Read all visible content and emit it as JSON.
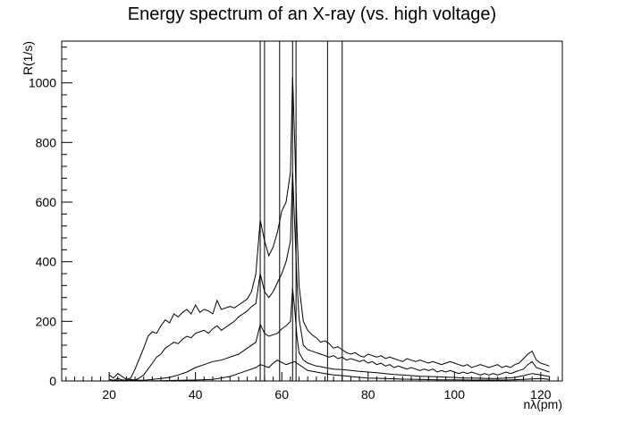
{
  "chart_data": {
    "type": "line",
    "title": "Energy spectrum of an X-ray (vs. high voltage)",
    "xlabel": "nλ(pm)",
    "ylabel": "R(1/s)",
    "xlim": [
      9,
      125
    ],
    "ylim": [
      0,
      1140
    ],
    "xticks": [
      20,
      40,
      60,
      80,
      100,
      120
    ],
    "yticks": [
      0,
      200,
      400,
      600,
      800,
      1000
    ],
    "grid": false,
    "legend": "none",
    "vertical_lines": [
      55,
      56,
      59.5,
      62.5,
      63.3,
      70.6,
      74
    ],
    "series": [
      {
        "x": [
          20,
          21,
          22,
          23,
          24,
          25,
          26,
          27,
          28,
          29,
          30,
          31,
          32,
          33,
          34,
          35,
          36,
          37,
          38,
          39,
          40,
          41,
          42,
          43,
          44,
          45,
          46,
          47,
          48,
          49,
          50,
          51,
          52,
          53,
          54,
          55,
          56,
          57,
          58,
          59,
          60,
          61,
          62,
          62.5,
          63,
          63.5,
          64,
          65,
          66,
          67,
          68,
          69,
          70,
          71,
          72,
          73,
          74,
          75,
          76,
          77,
          78,
          79,
          80,
          81,
          82,
          83,
          84,
          85,
          86,
          87,
          88,
          89,
          90,
          91,
          92,
          93,
          94,
          95,
          96,
          97,
          98,
          99,
          100,
          101,
          102,
          103,
          104,
          105,
          106,
          107,
          108,
          109,
          110,
          111,
          112,
          113,
          114,
          115,
          116,
          117,
          118,
          119,
          120,
          121,
          122
        ],
        "y": [
          20,
          10,
          25,
          15,
          5,
          10,
          40,
          75,
          110,
          150,
          165,
          160,
          185,
          205,
          195,
          225,
          215,
          230,
          240,
          225,
          255,
          230,
          240,
          235,
          225,
          270,
          240,
          245,
          250,
          245,
          255,
          265,
          275,
          300,
          360,
          540,
          470,
          420,
          450,
          500,
          570,
          600,
          700,
          1020,
          800,
          520,
          320,
          200,
          170,
          155,
          145,
          130,
          135,
          125,
          110,
          115,
          105,
          95,
          90,
          95,
          85,
          80,
          90,
          85,
          80,
          85,
          75,
          80,
          75,
          70,
          65,
          75,
          70,
          65,
          70,
          65,
          60,
          65,
          60,
          55,
          60,
          65,
          60,
          55,
          50,
          55,
          45,
          50,
          55,
          50,
          45,
          50,
          55,
          45,
          50,
          45,
          55,
          60,
          75,
          90,
          100,
          70,
          60,
          55,
          50
        ]
      },
      {
        "x": [
          20,
          21,
          22,
          23,
          24,
          25,
          26,
          27,
          28,
          29,
          30,
          31,
          32,
          33,
          34,
          35,
          36,
          37,
          38,
          39,
          40,
          41,
          42,
          43,
          44,
          45,
          46,
          47,
          48,
          49,
          50,
          51,
          52,
          53,
          54,
          55,
          56,
          57,
          58,
          59,
          60,
          61,
          62,
          62.5,
          63,
          63.5,
          64,
          65,
          66,
          67,
          68,
          69,
          70,
          71,
          72,
          73,
          74,
          75,
          76,
          77,
          78,
          79,
          80,
          81,
          82,
          83,
          84,
          85,
          86,
          87,
          88,
          89,
          90,
          91,
          92,
          93,
          94,
          95,
          96,
          97,
          98,
          99,
          100,
          101,
          102,
          103,
          104,
          105,
          106,
          107,
          108,
          109,
          110,
          111,
          112,
          113,
          114,
          115,
          116,
          117,
          118,
          119,
          120,
          121,
          122
        ],
        "y": [
          5,
          2,
          8,
          4,
          2,
          5,
          3,
          10,
          20,
          40,
          60,
          80,
          90,
          110,
          120,
          130,
          125,
          140,
          150,
          145,
          160,
          165,
          170,
          160,
          175,
          185,
          170,
          180,
          190,
          200,
          215,
          225,
          235,
          250,
          260,
          360,
          300,
          280,
          300,
          330,
          360,
          400,
          470,
          700,
          520,
          340,
          210,
          120,
          105,
          100,
          95,
          90,
          85,
          80,
          85,
          75,
          80,
          70,
          75,
          70,
          65,
          70,
          60,
          65,
          55,
          60,
          50,
          55,
          45,
          50,
          45,
          40,
          45,
          40,
          35,
          40,
          35,
          40,
          30,
          35,
          30,
          35,
          30,
          25,
          30,
          25,
          30,
          25,
          20,
          25,
          20,
          25,
          20,
          25,
          30,
          25,
          30,
          35,
          40,
          55,
          65,
          45,
          40,
          35,
          30
        ]
      },
      {
        "x": [
          20,
          22,
          24,
          26,
          28,
          30,
          32,
          34,
          36,
          38,
          40,
          42,
          44,
          46,
          48,
          50,
          52,
          54,
          55,
          56,
          57,
          58,
          59,
          60,
          61,
          62,
          62.5,
          63,
          63.5,
          64,
          65,
          66,
          67,
          68,
          69,
          70,
          72,
          74,
          76,
          78,
          80,
          82,
          84,
          86,
          88,
          90,
          92,
          94,
          96,
          98,
          100,
          102,
          104,
          106,
          108,
          110,
          112,
          114,
          116,
          118,
          120,
          122
        ],
        "y": [
          0,
          2,
          0,
          3,
          2,
          5,
          8,
          12,
          20,
          30,
          45,
          55,
          65,
          70,
          80,
          90,
          110,
          130,
          190,
          160,
          150,
          155,
          160,
          175,
          185,
          200,
          310,
          240,
          150,
          95,
          70,
          60,
          55,
          50,
          48,
          45,
          40,
          38,
          35,
          32,
          30,
          28,
          25,
          22,
          20,
          18,
          16,
          15,
          14,
          13,
          12,
          10,
          10,
          9,
          8,
          8,
          10,
          12,
          18,
          25,
          20,
          15
        ]
      },
      {
        "x": [
          20,
          24,
          28,
          32,
          36,
          40,
          44,
          48,
          50,
          52,
          54,
          55,
          56,
          57,
          58,
          59,
          60,
          61,
          62,
          63,
          64,
          65,
          66,
          68,
          70,
          72,
          74,
          76,
          78,
          80,
          84,
          88,
          92,
          96,
          100,
          104,
          108,
          112,
          116,
          120,
          122
        ],
        "y": [
          0,
          0,
          0,
          1,
          2,
          3,
          5,
          15,
          25,
          35,
          45,
          55,
          50,
          45,
          60,
          70,
          62,
          55,
          60,
          65,
          55,
          45,
          35,
          30,
          25,
          20,
          18,
          15,
          12,
          10,
          8,
          6,
          5,
          4,
          4,
          3,
          3,
          3,
          5,
          8,
          5
        ]
      }
    ]
  }
}
